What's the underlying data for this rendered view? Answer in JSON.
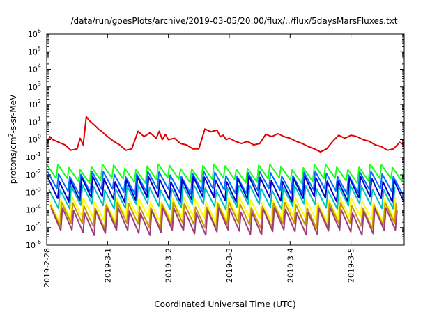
{
  "chart_data": {
    "type": "line",
    "title": "/data/run/goesPlots/archive/2019-03-05/20:00/flux/../flux/5daysMarsFluxes.txt",
    "xlabel": "Coordinated Universal Time (UTC)",
    "ylabel": {
      "base": "protons/cm",
      "sup": "2",
      "rest": "-s-sr-MeV"
    },
    "y_scale": "log",
    "ylim": [
      1e-06,
      1000000.0
    ],
    "xlim": [
      "2019-02-28 00:00",
      "2019-03-05 21:00"
    ],
    "grid": false,
    "legend": "none",
    "x_ticks": [
      "2019-2-28",
      "2019-3-1",
      "2019-3-2",
      "2019-3-3",
      "2019-3-4",
      "2019-3-5"
    ],
    "y_ticks": [
      {
        "value": 1e-06,
        "base": "10",
        "exp": "-6"
      },
      {
        "value": 1e-05,
        "base": "10",
        "exp": "-5"
      },
      {
        "value": 0.0001,
        "base": "10",
        "exp": "-4"
      },
      {
        "value": 0.001,
        "base": "10",
        "exp": "-3"
      },
      {
        "value": 0.01,
        "base": "10",
        "exp": "-2"
      },
      {
        "value": 0.1,
        "base": "10",
        "exp": "-1"
      },
      {
        "value": 1,
        "base": "10",
        "exp": "0"
      },
      {
        "value": 10,
        "base": "10",
        "exp": "1"
      },
      {
        "value": 100,
        "base": "10",
        "exp": "2"
      },
      {
        "value": 1000,
        "base": "10",
        "exp": "3"
      },
      {
        "value": 10000,
        "base": "10",
        "exp": "4"
      },
      {
        "value": 100000,
        "base": "10",
        "exp": "5"
      },
      {
        "value": 1000000,
        "base": "10",
        "exp": "6"
      }
    ],
    "series": [
      {
        "color": "#e00000",
        "x": [
          "2019-02-28 00:00",
          "2019-02-28 01:12",
          "2019-02-28 02:24",
          "2019-02-28 04:48",
          "2019-02-28 07:12",
          "2019-02-28 09:36",
          "2019-02-28 12:00",
          "2019-02-28 13:12",
          "2019-02-28 14:24",
          "2019-02-28 15:36",
          "2019-02-28 16:48",
          "2019-02-28 19:12",
          "2019-02-28 20:24",
          "2019-02-28 21:36",
          "2019-03-01 00:00",
          "2019-03-01 02:24",
          "2019-03-01 04:48",
          "2019-03-01 07:12",
          "2019-03-01 09:36",
          "2019-03-01 12:00",
          "2019-03-01 14:24",
          "2019-03-01 16:48",
          "2019-03-01 19:12",
          "2019-03-01 20:24",
          "2019-03-01 21:36",
          "2019-03-01 22:48",
          "2019-03-02 00:00",
          "2019-03-02 02:24",
          "2019-03-02 04:48",
          "2019-03-02 07:12",
          "2019-03-02 09:36",
          "2019-03-02 12:00",
          "2019-03-02 14:24",
          "2019-03-02 16:48",
          "2019-03-02 19:12",
          "2019-03-02 20:24",
          "2019-03-02 21:36",
          "2019-03-02 22:48",
          "2019-03-03 00:00",
          "2019-03-03 02:24",
          "2019-03-03 04:48",
          "2019-03-03 07:12",
          "2019-03-03 09:36",
          "2019-03-03 12:00",
          "2019-03-03 14:24",
          "2019-03-03 16:48",
          "2019-03-03 19:12",
          "2019-03-03 21:36",
          "2019-03-04 00:00",
          "2019-03-04 02:24",
          "2019-03-04 04:48",
          "2019-03-04 07:12",
          "2019-03-04 09:36",
          "2019-03-04 12:00",
          "2019-03-04 14:24",
          "2019-03-04 16:48",
          "2019-03-04 19:12",
          "2019-03-04 21:36",
          "2019-03-05 00:00",
          "2019-03-05 02:24",
          "2019-03-05 04:48",
          "2019-03-05 07:12",
          "2019-03-05 09:36",
          "2019-03-05 12:00",
          "2019-03-05 14:24",
          "2019-03-05 16:48",
          "2019-03-05 19:12",
          "2019-03-05 21:00"
        ],
        "y": [
          0.5,
          1.5,
          1.0,
          0.7,
          0.5,
          0.25,
          0.3,
          1.2,
          0.5,
          20.0,
          12.0,
          6.0,
          4.0,
          3.0,
          1.5,
          0.8,
          0.5,
          0.25,
          0.3,
          3.0,
          1.5,
          2.5,
          1.2,
          3.0,
          1.0,
          2.0,
          1.0,
          1.2,
          0.6,
          0.5,
          0.3,
          0.3,
          4.0,
          2.8,
          3.5,
          1.5,
          1.8,
          1.0,
          1.2,
          0.8,
          0.6,
          0.8,
          0.5,
          0.6,
          2.0,
          1.5,
          2.2,
          1.5,
          1.2,
          0.8,
          0.6,
          0.4,
          0.3,
          0.2,
          0.3,
          0.8,
          1.8,
          1.2,
          1.8,
          1.5,
          1.0,
          0.8,
          0.5,
          0.4,
          0.25,
          0.3,
          0.7,
          0.5
        ]
      },
      {
        "color": "#1aff1a",
        "base": 0.03,
        "period_h": 4.4,
        "drop": 6,
        "phase": 0
      },
      {
        "color": "#0070ff",
        "base": 0.012,
        "period_h": 4.4,
        "drop": 10,
        "phase": 0.3
      },
      {
        "color": "#0000c8",
        "base": 0.006,
        "period_h": 4.4,
        "drop": 14,
        "phase": 0.6
      },
      {
        "color": "#00c0c0",
        "base": 0.002,
        "period_h": 4.4,
        "drop": 12,
        "phase": 0.9
      },
      {
        "color": "#ffff00",
        "base": 0.0004,
        "period_h": 4.4,
        "drop": 12,
        "phase": 1.2
      },
      {
        "color": "#c89600",
        "base": 0.0002,
        "period_h": 4.4,
        "drop": 15,
        "phase": 1.5
      },
      {
        "color": "#a03c78",
        "base": 0.0001,
        "period_h": 4.4,
        "drop": 18,
        "phase": 1.8
      }
    ]
  }
}
